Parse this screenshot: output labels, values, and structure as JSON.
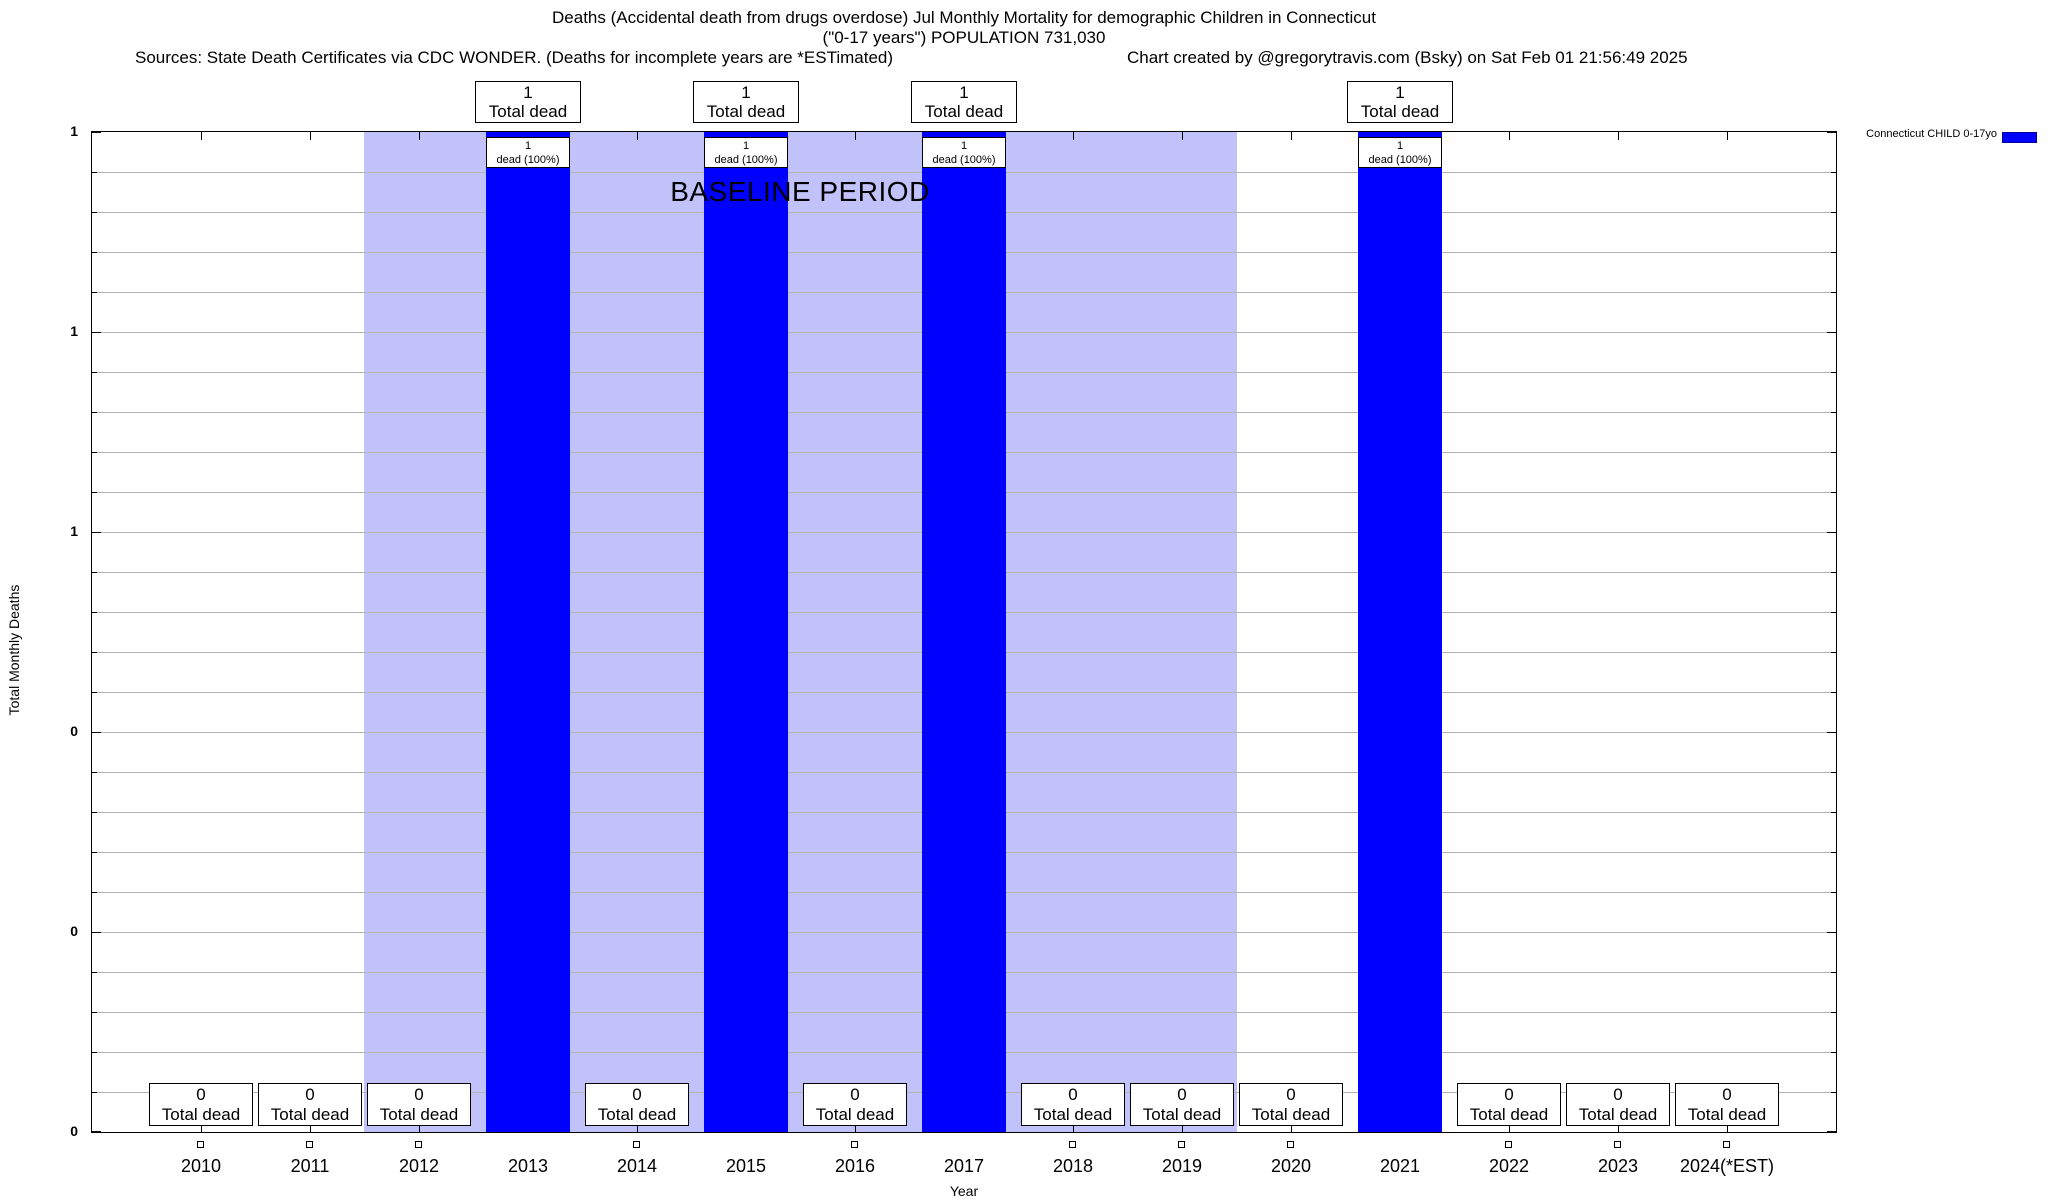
{
  "header": {
    "title_line1": "Deaths (Accidental death from drugs overdose) Jul Monthly Mortality for demographic Children in Connecticut",
    "title_line2": "(\"0-17 years\") POPULATION 731,030",
    "sources": "Sources: State Death Certificates via CDC WONDER. (Deaths for incomplete years are *ESTimated)",
    "credit": "Chart created by @gregorytravis.com (Bsky) on Sat Feb 01 21:56:49 2025"
  },
  "legend": {
    "label": "Connecticut CHILD 0-17yo",
    "swatch_color": "#0000ff"
  },
  "annotations": {
    "baseline_label": "BASELINE PERIOD"
  },
  "labels": {
    "nonzero_box_line1": "1",
    "nonzero_box_line2": "Total dead",
    "inbar_box_line1": "1",
    "inbar_box_line2": "dead (100%)",
    "zero_box_line1": "0",
    "zero_box_line2": "Total dead"
  },
  "chart_data": {
    "type": "bar",
    "title": "Deaths (Accidental death from drugs overdose) Jul Monthly Mortality for demographic Children in Connecticut (\"0-17 years\") POPULATION 731,030",
    "categories": [
      "2010",
      "2011",
      "2012",
      "2013",
      "2014",
      "2015",
      "2016",
      "2017",
      "2018",
      "2019",
      "2020",
      "2021",
      "2022",
      "2023",
      "2024(*EST)"
    ],
    "series": [
      {
        "name": "Connecticut CHILD 0-17yo",
        "values": [
          0,
          0,
          0,
          1,
          0,
          1,
          0,
          1,
          0,
          0,
          0,
          1,
          0,
          0,
          0
        ]
      }
    ],
    "xlabel": "Year",
    "ylabel": "Total Monthly Deaths",
    "ylim": [
      0,
      1
    ],
    "y_major_tick_values": [
      0,
      0.2,
      0.4,
      0.6,
      0.8,
      1.0
    ],
    "y_tick_labels_bottom_to_top": [
      "0",
      "0",
      "0",
      "1",
      "1",
      "1"
    ],
    "grid": "horizontal minor gridlines, 5 per major division",
    "legend_position": "top-right-outside",
    "baseline_period": {
      "label": "BASELINE PERIOD",
      "from_year": 2012,
      "to_year": 2019
    },
    "bar_annotations_nonzero_years": {
      "above_plot": [
        "1",
        "Total dead"
      ],
      "at_bar_top": [
        "1",
        "dead (100%)"
      ]
    },
    "bar_annotations_zero_years": {
      "above_axis": [
        "0",
        "Total dead"
      ],
      "marker_below_axis": "open-square"
    },
    "colors": {
      "bar": "#0000ff",
      "baseline_band": "#c2c2fb",
      "gridline": "#b4b4b4",
      "annotation_box_fill": "#ffffff",
      "annotation_box_border": "#000000",
      "text": "#000000"
    }
  }
}
